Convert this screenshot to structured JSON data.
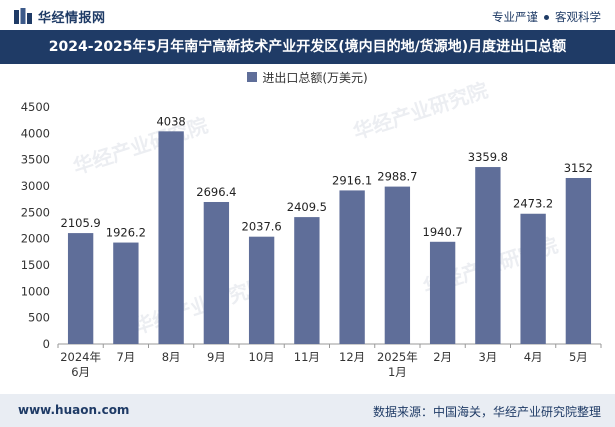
{
  "header": {
    "brand": "华经情报网",
    "slogan_left": "专业严谨",
    "slogan_right": "客观科学"
  },
  "chart_data": {
    "type": "bar",
    "title": "2024-2025年5月年南宁高新技术产业开发区(境内目的地/货源地)月度进出口总额",
    "legend": [
      "进出口总额(万美元)"
    ],
    "categories": [
      "2024年\n6月",
      "7月",
      "8月",
      "9月",
      "10月",
      "11月",
      "12月",
      "2025年\n1月",
      "2月",
      "3月",
      "4月",
      "5月"
    ],
    "values": [
      2105.9,
      1926.2,
      4038,
      2696.4,
      2037.6,
      2409.5,
      2916.1,
      2988.7,
      1940.7,
      3359.8,
      2473.2,
      3152
    ],
    "value_labels": [
      "2105.9",
      "1926.2",
      "4038",
      "2696.4",
      "2037.6",
      "2409.5",
      "2916.1",
      "2988.7",
      "1940.7",
      "3359.8",
      "2473.2",
      "3152"
    ],
    "ylim": [
      0,
      4500
    ],
    "yticks": [
      0,
      500,
      1000,
      1500,
      2000,
      2500,
      3000,
      3500,
      4000,
      4500
    ],
    "xlabel": "",
    "ylabel": "",
    "bar_color": "#5f6e99"
  },
  "footer": {
    "website": "www.huaon.com",
    "source": "数据来源：中国海关，华经产业研究院整理"
  },
  "watermark": "华经产业研究院"
}
